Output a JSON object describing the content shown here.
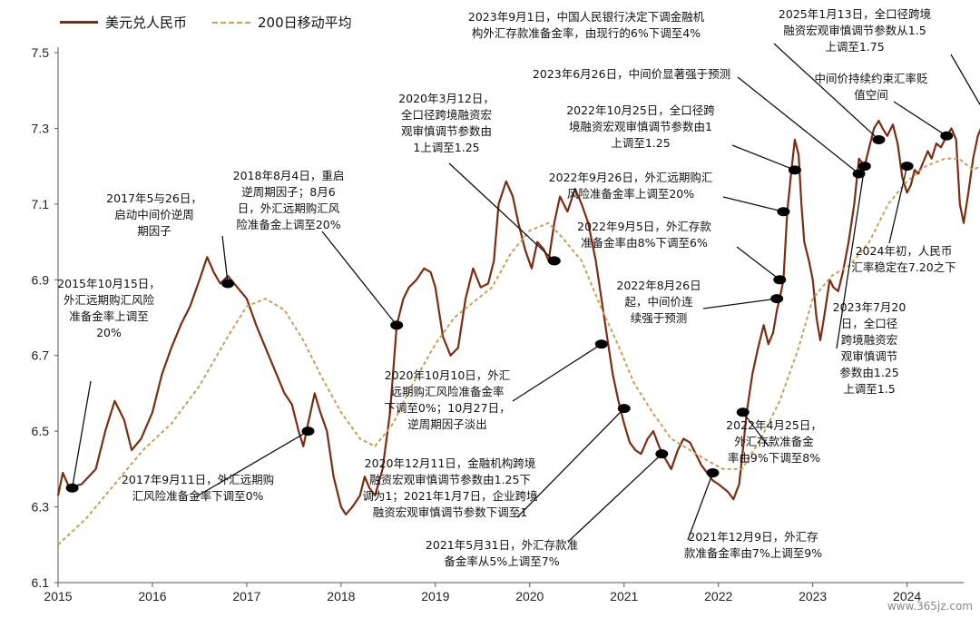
{
  "legend": {
    "series1": "美元兑人民币",
    "series2": "200日移动平均"
  },
  "watermark": "www.365jz.com",
  "colors": {
    "usdcny": "#7b2d14",
    "ma200": "#c8a05a",
    "marker": "#000000",
    "axis": "#555555"
  },
  "chart_data": {
    "type": "line",
    "title": "",
    "xlabel": "",
    "ylabel": "",
    "ylim": [
      6.1,
      7.5
    ],
    "xlim": [
      2015.0,
      2024.6
    ],
    "yticks": [
      "7.5",
      "7.3",
      "7.1",
      "6.9",
      "6.7",
      "6.5",
      "6.3",
      "6.1"
    ],
    "xticks": [
      "2015",
      "2016",
      "2017",
      "2018",
      "2019",
      "2020",
      "2021",
      "2022",
      "2023",
      "2024"
    ],
    "series": [
      {
        "name": "美元兑人民币",
        "points": [
          [
            2015.0,
            6.33
          ],
          [
            2015.05,
            6.39
          ],
          [
            2015.12,
            6.35
          ],
          [
            2015.25,
            6.36
          ],
          [
            2015.4,
            6.4
          ],
          [
            2015.5,
            6.5
          ],
          [
            2015.6,
            6.58
          ],
          [
            2015.7,
            6.53
          ],
          [
            2015.78,
            6.45
          ],
          [
            2015.88,
            6.48
          ],
          [
            2016.0,
            6.55
          ],
          [
            2016.1,
            6.65
          ],
          [
            2016.2,
            6.72
          ],
          [
            2016.3,
            6.78
          ],
          [
            2016.4,
            6.83
          ],
          [
            2016.5,
            6.9
          ],
          [
            2016.58,
            6.96
          ],
          [
            2016.65,
            6.92
          ],
          [
            2016.72,
            6.89
          ],
          [
            2016.8,
            6.91
          ],
          [
            2016.9,
            6.88
          ],
          [
            2017.0,
            6.85
          ],
          [
            2017.1,
            6.78
          ],
          [
            2017.2,
            6.72
          ],
          [
            2017.3,
            6.66
          ],
          [
            2017.4,
            6.6
          ],
          [
            2017.48,
            6.57
          ],
          [
            2017.55,
            6.5
          ],
          [
            2017.6,
            6.46
          ],
          [
            2017.65,
            6.52
          ],
          [
            2017.72,
            6.6
          ],
          [
            2017.78,
            6.55
          ],
          [
            2017.85,
            6.5
          ],
          [
            2017.92,
            6.38
          ],
          [
            2018.0,
            6.3
          ],
          [
            2018.05,
            6.28
          ],
          [
            2018.12,
            6.3
          ],
          [
            2018.2,
            6.33
          ],
          [
            2018.25,
            6.38
          ],
          [
            2018.3,
            6.35
          ],
          [
            2018.36,
            6.33
          ],
          [
            2018.44,
            6.4
          ],
          [
            2018.52,
            6.55
          ],
          [
            2018.59,
            6.78
          ],
          [
            2018.66,
            6.85
          ],
          [
            2018.72,
            6.88
          ],
          [
            2018.8,
            6.9
          ],
          [
            2018.88,
            6.93
          ],
          [
            2018.95,
            6.92
          ],
          [
            2019.0,
            6.88
          ],
          [
            2019.08,
            6.75
          ],
          [
            2019.16,
            6.7
          ],
          [
            2019.24,
            6.72
          ],
          [
            2019.32,
            6.85
          ],
          [
            2019.4,
            6.93
          ],
          [
            2019.48,
            6.88
          ],
          [
            2019.56,
            6.89
          ],
          [
            2019.62,
            6.95
          ],
          [
            2019.67,
            7.1
          ],
          [
            2019.75,
            7.16
          ],
          [
            2019.82,
            7.12
          ],
          [
            2019.88,
            7.05
          ],
          [
            2019.95,
            6.98
          ],
          [
            2020.02,
            6.93
          ],
          [
            2020.08,
            7.0
          ],
          [
            2020.15,
            6.98
          ],
          [
            2020.2,
            6.95
          ],
          [
            2020.26,
            7.05
          ],
          [
            2020.32,
            7.12
          ],
          [
            2020.4,
            7.08
          ],
          [
            2020.48,
            7.14
          ],
          [
            2020.55,
            7.1
          ],
          [
            2020.62,
            7.05
          ],
          [
            2020.7,
            6.95
          ],
          [
            2020.76,
            6.85
          ],
          [
            2020.82,
            6.75
          ],
          [
            2020.88,
            6.65
          ],
          [
            2020.94,
            6.58
          ],
          [
            2021.0,
            6.52
          ],
          [
            2021.06,
            6.47
          ],
          [
            2021.12,
            6.45
          ],
          [
            2021.18,
            6.44
          ],
          [
            2021.25,
            6.48
          ],
          [
            2021.31,
            6.5
          ],
          [
            2021.37,
            6.46
          ],
          [
            2021.43,
            6.43
          ],
          [
            2021.5,
            6.4
          ],
          [
            2021.57,
            6.45
          ],
          [
            2021.63,
            6.48
          ],
          [
            2021.7,
            6.47
          ],
          [
            2021.76,
            6.44
          ],
          [
            2021.82,
            6.41
          ],
          [
            2021.88,
            6.39
          ],
          [
            2021.94,
            6.37
          ],
          [
            2022.0,
            6.36
          ],
          [
            2022.05,
            6.35
          ],
          [
            2022.1,
            6.34
          ],
          [
            2022.16,
            6.32
          ],
          [
            2022.22,
            6.36
          ],
          [
            2022.26,
            6.45
          ],
          [
            2022.3,
            6.55
          ],
          [
            2022.36,
            6.65
          ],
          [
            2022.42,
            6.72
          ],
          [
            2022.48,
            6.78
          ],
          [
            2022.53,
            6.73
          ],
          [
            2022.58,
            6.76
          ],
          [
            2022.62,
            6.82
          ],
          [
            2022.65,
            6.85
          ],
          [
            2022.69,
            6.9
          ],
          [
            2022.73,
            7.08
          ],
          [
            2022.77,
            7.18
          ],
          [
            2022.81,
            7.27
          ],
          [
            2022.85,
            7.23
          ],
          [
            2022.88,
            7.1
          ],
          [
            2022.91,
            7.0
          ],
          [
            2022.96,
            6.95
          ],
          [
            2023.0,
            6.9
          ],
          [
            2023.04,
            6.8
          ],
          [
            2023.08,
            6.74
          ],
          [
            2023.12,
            6.8
          ],
          [
            2023.18,
            6.9
          ],
          [
            2023.22,
            6.88
          ],
          [
            2023.27,
            6.87
          ],
          [
            2023.32,
            6.92
          ],
          [
            2023.38,
            7.0
          ],
          [
            2023.44,
            7.1
          ],
          [
            2023.49,
            7.22
          ],
          [
            2023.55,
            7.2
          ],
          [
            2023.6,
            7.25
          ],
          [
            2023.65,
            7.3
          ],
          [
            2023.7,
            7.32
          ],
          [
            2023.74,
            7.3
          ],
          [
            2023.79,
            7.28
          ],
          [
            2023.85,
            7.31
          ],
          [
            2023.9,
            7.26
          ],
          [
            2023.95,
            7.17
          ],
          [
            2024.0,
            7.13
          ],
          [
            2024.04,
            7.15
          ],
          [
            2024.08,
            7.19
          ],
          [
            2024.12,
            7.18
          ],
          [
            2024.17,
            7.21
          ],
          [
            2024.22,
            7.24
          ],
          [
            2024.26,
            7.22
          ],
          [
            2024.31,
            7.26
          ],
          [
            2024.36,
            7.25
          ],
          [
            2024.42,
            7.28
          ],
          [
            2024.47,
            7.3
          ],
          [
            2024.52,
            7.27
          ],
          [
            2024.56,
            7.1
          ],
          [
            2024.6,
            7.05
          ],
          [
            2024.65,
            7.13
          ],
          [
            2024.7,
            7.22
          ],
          [
            2024.75,
            7.28
          ],
          [
            2024.8,
            7.31
          ],
          [
            2024.85,
            7.33
          ]
        ]
      },
      {
        "name": "200日移动平均",
        "points": [
          [
            2015.0,
            6.2
          ],
          [
            2015.3,
            6.27
          ],
          [
            2015.6,
            6.36
          ],
          [
            2015.9,
            6.45
          ],
          [
            2016.2,
            6.52
          ],
          [
            2016.5,
            6.62
          ],
          [
            2016.8,
            6.75
          ],
          [
            2017.0,
            6.83
          ],
          [
            2017.2,
            6.85
          ],
          [
            2017.4,
            6.82
          ],
          [
            2017.6,
            6.74
          ],
          [
            2017.8,
            6.64
          ],
          [
            2018.0,
            6.55
          ],
          [
            2018.2,
            6.48
          ],
          [
            2018.36,
            6.46
          ],
          [
            2018.55,
            6.52
          ],
          [
            2018.75,
            6.62
          ],
          [
            2019.0,
            6.73
          ],
          [
            2019.2,
            6.8
          ],
          [
            2019.4,
            6.84
          ],
          [
            2019.6,
            6.88
          ],
          [
            2019.8,
            6.97
          ],
          [
            2020.0,
            7.03
          ],
          [
            2020.2,
            7.05
          ],
          [
            2020.35,
            7.01
          ],
          [
            2020.55,
            6.95
          ],
          [
            2020.75,
            6.83
          ],
          [
            2020.95,
            6.72
          ],
          [
            2021.1,
            6.63
          ],
          [
            2021.3,
            6.55
          ],
          [
            2021.5,
            6.48
          ],
          [
            2021.7,
            6.45
          ],
          [
            2021.9,
            6.42
          ],
          [
            2022.05,
            6.4
          ],
          [
            2022.25,
            6.4
          ],
          [
            2022.45,
            6.48
          ],
          [
            2022.65,
            6.58
          ],
          [
            2022.85,
            6.72
          ],
          [
            2023.0,
            6.85
          ],
          [
            2023.2,
            6.91
          ],
          [
            2023.4,
            6.94
          ],
          [
            2023.6,
            7.0
          ],
          [
            2023.8,
            7.1
          ],
          [
            2024.0,
            7.16
          ],
          [
            2024.2,
            7.2
          ],
          [
            2024.4,
            7.22
          ],
          [
            2024.55,
            7.22
          ],
          [
            2024.7,
            7.19
          ],
          [
            2024.85,
            7.21
          ]
        ]
      }
    ],
    "annotations": [
      {
        "text": "2015年10月15日，\n外汇远期购汇风险\n准备金率上调至\n20%",
        "point": [
          2015.15,
          6.35
        ]
      },
      {
        "text": "2017年5与26日，\n启动中间价逆周\n期因子",
        "point": [
          2016.8,
          6.89
        ]
      },
      {
        "text": "2017年9月11日，外汇远期购\n汇风险准备金率下调至0%",
        "point": [
          2017.65,
          6.5
        ]
      },
      {
        "text": "2018年8月4日，重启\n逆周期因子；8月6\n日，外汇远期购汇风\n险准备金上调至20%",
        "point": [
          2018.59,
          6.78
        ]
      },
      {
        "text": "2020年3月12日，\n全口径跨境融资宏\n观审慎调节参数由\n1上调至1.25",
        "point": [
          2020.26,
          6.95
        ]
      },
      {
        "text": "2020年10月10日，外汇\n远期购汇风险准备金率\n下调至0%；10月27日，\n逆周期因子淡出",
        "point": [
          2020.76,
          6.73
        ]
      },
      {
        "text": "2020年12月11日，金融机构跨境\n融资宏观审慎调节参数由1.25下\n调为1；2021年1月7日，企业跨境\n融资宏观审慎调节参数下调至1",
        "point": [
          2021.0,
          6.56
        ]
      },
      {
        "text": "2021年5月31日，外汇存款准\n备金率从5%上调至7%",
        "point": [
          2021.4,
          6.44
        ]
      },
      {
        "text": "2021年12月9日，外汇存\n款准备金率由7%上调至9%",
        "point": [
          2021.94,
          6.39
        ]
      },
      {
        "text": "2022年4月25日，\n外汇存款准备金\n率由9%下调至8%",
        "point": [
          2022.26,
          6.55
        ]
      },
      {
        "text": "2022年8月26日\n起，中间价连\n续强于预测",
        "point": [
          2022.62,
          6.85
        ]
      },
      {
        "text": "2022年9月5日，外汇存款\n准备金率由8%下调至6%",
        "point": [
          2022.65,
          6.9
        ]
      },
      {
        "text": "2022年9月26日，外汇远期购汇\n风险准备金率上调至20%",
        "point": [
          2022.69,
          7.08
        ]
      },
      {
        "text": "2022年10月25日，全口径跨\n境融资宏观审慎调节参数由1\n上调至1.25",
        "point": [
          2022.81,
          7.19
        ]
      },
      {
        "text": "2023年6月26日，中间价显著强于预测",
        "point": [
          2023.49,
          7.18
        ]
      },
      {
        "text": "2023年9月1日，中国人民银行决定下调金融机\n构外汇存款准备金率，由现行的6%下调至4%",
        "point": [
          2023.7,
          7.27
        ]
      },
      {
        "text": "2023年7月20\n日，全口径\n跨境融资宏\n观审慎调节\n参数由1.25\n上调至1.5",
        "point": [
          2023.55,
          7.2
        ]
      },
      {
        "text": "2024年初，人民币\n汇率稳定在7.20之下",
        "point": [
          2024.0,
          7.2
        ]
      },
      {
        "text": "中间价持续约束汇率贬\n值空间",
        "point": [
          2024.42,
          7.28
        ]
      },
      {
        "text": "2025年1月13日，全口径跨境\n融资宏观审慎调节参数从1.5\n上调至1.75",
        "point": [
          2024.85,
          7.33
        ]
      }
    ]
  }
}
